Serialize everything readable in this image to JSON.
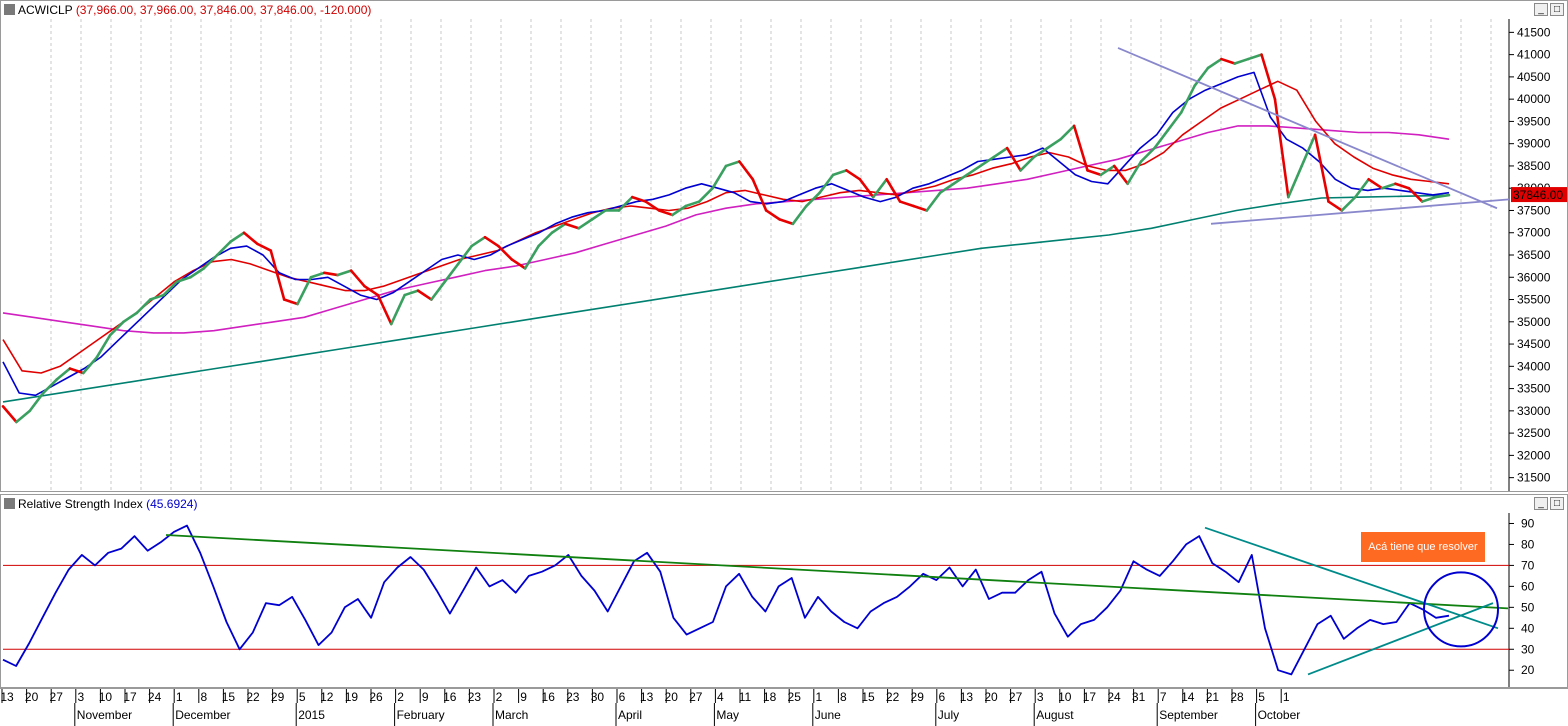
{
  "price_pane": {
    "symbol": "ACWICLP",
    "values_text": "(37,966.00, 37,966.00, 37,846.00, 37,846.00, -120.000)",
    "last_price_label": "37846.00",
    "colors": {
      "heikin_up": "#3aa060",
      "heikin_down": "#e80000",
      "ma_fast": "#0000d0",
      "ma_mid": "#e00000",
      "ma_slow": "#d020c0",
      "ma_200": "#008070",
      "trendline": "#8a88cc"
    }
  },
  "rsi_pane": {
    "title": "Relative Strength Index",
    "value_text": "(45.6924)",
    "annotation": "Acá tiene que resolver",
    "colors": {
      "rsi": "#0000d0",
      "long_trend": "#108010",
      "triangle": "#008b8b",
      "bands": "#d00000",
      "circle": "#0000d0"
    }
  },
  "window_buttons": {
    "minimize": "_",
    "close": "□"
  },
  "chart_data": [
    {
      "type": "line",
      "title": "ACWICLP",
      "y_ticks": [
        31500,
        32000,
        32500,
        33000,
        33500,
        34000,
        34500,
        35000,
        35500,
        36000,
        36500,
        37000,
        37500,
        38000,
        38500,
        39000,
        39500,
        40000,
        40500,
        41000,
        41500
      ],
      "ylim": [
        31200,
        41800
      ],
      "last_value": 37846,
      "series": [
        {
          "name": "",
          "role": "price",
          "values": [
            33100,
            32750,
            33000,
            33400,
            33700,
            33950,
            33850,
            34200,
            34700,
            35000,
            35200,
            35500,
            35600,
            35900,
            36000,
            36200,
            36500,
            36800,
            37000,
            36750,
            36600,
            35500,
            35400,
            36000,
            36100,
            36050,
            36150,
            35800,
            35600,
            34950,
            35600,
            35700,
            35500,
            35900,
            36300,
            36700,
            36900,
            36700,
            36400,
            36200,
            36700,
            37000,
            37200,
            37100,
            37300,
            37500,
            37500,
            37800,
            37700,
            37500,
            37400,
            37600,
            37700,
            38000,
            38500,
            38600,
            38200,
            37500,
            37300,
            37200,
            37600,
            37900,
            38300,
            38400,
            38200,
            37800,
            38200,
            37700,
            37600,
            37500,
            37900,
            38100,
            38300,
            38500,
            38700,
            38900,
            38400,
            38700,
            38900,
            39100,
            39400,
            38400,
            38300,
            38500,
            38100,
            38600,
            38900,
            39300,
            39700,
            40300,
            40700,
            40900,
            40800,
            40900,
            41000,
            40000,
            37800,
            38500,
            39200,
            37700,
            37500,
            37800,
            38200,
            38000,
            38100,
            38000,
            37700,
            37800,
            37846
          ]
        },
        {
          "name": "",
          "role": "ma_fast",
          "values": [
            34100,
            33400,
            33350,
            33550,
            33750,
            33950,
            34200,
            34550,
            34900,
            35250,
            35600,
            35950,
            36200,
            36450,
            36650,
            36700,
            36500,
            36100,
            35950,
            35950,
            36000,
            35800,
            35600,
            35500,
            35650,
            35900,
            36150,
            36400,
            36500,
            36400,
            36500,
            36700,
            36850,
            37000,
            37200,
            37350,
            37450,
            37500,
            37600,
            37700,
            37750,
            37850,
            38000,
            38100,
            38000,
            37900,
            37700,
            37650,
            37700,
            37850,
            38000,
            38100,
            37950,
            37800,
            37700,
            37800,
            38000,
            38100,
            38250,
            38400,
            38600,
            38650,
            38700,
            38750,
            38900,
            38600,
            38300,
            38150,
            38100,
            38500,
            38900,
            39200,
            39700,
            40000,
            40200,
            40350,
            40500,
            40600,
            39600,
            39100,
            38900,
            38600,
            38200,
            38000,
            37950,
            38000,
            37950,
            37900,
            37850,
            37900
          ]
        },
        {
          "name": "",
          "role": "ma_mid",
          "values": [
            34600,
            33900,
            33850,
            34000,
            34300,
            34600,
            34900,
            35200,
            35550,
            35900,
            36150,
            36350,
            36400,
            36300,
            36150,
            36000,
            35900,
            35800,
            35700,
            35700,
            35800,
            35950,
            36100,
            36250,
            36400,
            36500,
            36600,
            36800,
            37000,
            37150,
            37300,
            37450,
            37550,
            37600,
            37550,
            37500,
            37550,
            37700,
            37900,
            37950,
            37850,
            37750,
            37700,
            37800,
            37900,
            37950,
            37900,
            37850,
            37950,
            38050,
            38200,
            38300,
            38450,
            38550,
            38700,
            38800,
            38700,
            38500,
            38400,
            38400,
            38550,
            38800,
            39200,
            39500,
            39800,
            40000,
            40200,
            40400,
            40200,
            39500,
            39000,
            38700,
            38450,
            38300,
            38200,
            38150,
            38100
          ]
        },
        {
          "name": "",
          "role": "ma_slow",
          "values": [
            35200,
            35100,
            35000,
            34900,
            34800,
            34750,
            34750,
            34800,
            34900,
            35000,
            35100,
            35300,
            35500,
            35700,
            35850,
            36000,
            36150,
            36250,
            36400,
            36550,
            36750,
            36950,
            37150,
            37400,
            37550,
            37650,
            37700,
            37750,
            37800,
            37850,
            37900,
            37950,
            38000,
            38100,
            38200,
            38350,
            38500,
            38650,
            38850,
            39050,
            39250,
            39400,
            39400,
            39350,
            39300,
            39250,
            39250,
            39200,
            39100
          ]
        },
        {
          "name": "",
          "role": "ma_200",
          "values": [
            33200,
            33350,
            33500,
            33650,
            33800,
            33950,
            34100,
            34250,
            34400,
            34550,
            34700,
            34850,
            35000,
            35150,
            35300,
            35450,
            35600,
            35750,
            35900,
            36050,
            36200,
            36350,
            36500,
            36650,
            36750,
            36850,
            36950,
            37100,
            37300,
            37500,
            37650,
            37780,
            37800,
            37820,
            37840
          ]
        }
      ]
    },
    {
      "type": "line",
      "title": "Relative Strength Index",
      "y_ticks": [
        20,
        30,
        40,
        50,
        60,
        70,
        80,
        90
      ],
      "ylim": [
        12,
        95
      ],
      "bands": [
        30,
        70
      ],
      "last_value": 45.6924,
      "series": [
        {
          "name": "",
          "role": "rsi",
          "values": [
            25,
            22,
            33,
            45,
            57,
            68,
            75,
            70,
            76,
            78,
            84,
            77,
            81,
            86,
            89,
            76,
            60,
            43,
            30,
            38,
            52,
            51,
            55,
            44,
            32,
            38,
            50,
            54,
            45,
            62,
            69,
            74,
            68,
            58,
            47,
            58,
            69,
            60,
            63,
            57,
            65,
            67,
            70,
            75,
            65,
            58,
            48,
            60,
            72,
            76,
            67,
            45,
            37,
            40,
            43,
            60,
            66,
            55,
            48,
            60,
            64,
            45,
            55,
            48,
            43,
            40,
            48,
            52,
            55,
            60,
            66,
            63,
            69,
            60,
            68,
            54,
            57,
            57,
            63,
            67,
            47,
            36,
            42,
            44,
            50,
            58,
            72,
            68,
            65,
            72,
            80,
            84,
            71,
            67,
            62,
            75,
            40,
            20,
            18,
            30,
            42,
            46,
            35,
            40,
            44,
            42,
            43,
            52,
            49,
            45,
            46
          ]
        },
        {
          "name": "",
          "role": "long_trend",
          "values": [
            84.5,
            49.5
          ]
        }
      ],
      "x_ticks": [
        "13",
        "20",
        "27",
        "3",
        "10",
        "17",
        "24",
        "1",
        "8",
        "15",
        "22",
        "29",
        "5",
        "12",
        "19",
        "26",
        "2",
        "9",
        "16",
        "23",
        "2",
        "9",
        "16",
        "23",
        "30",
        "6",
        "13",
        "20",
        "27",
        "4",
        "11",
        "18",
        "25",
        "1",
        "8",
        "15",
        "22",
        "29",
        "6",
        "13",
        "20",
        "27",
        "3",
        "10",
        "17",
        "24",
        "31",
        "7",
        "14",
        "21",
        "28",
        "5",
        "1"
      ],
      "month_labels": [
        "November",
        "December",
        "2015",
        "February",
        "March",
        "April",
        "May",
        "June",
        "July",
        "August",
        "September",
        "October"
      ]
    }
  ]
}
